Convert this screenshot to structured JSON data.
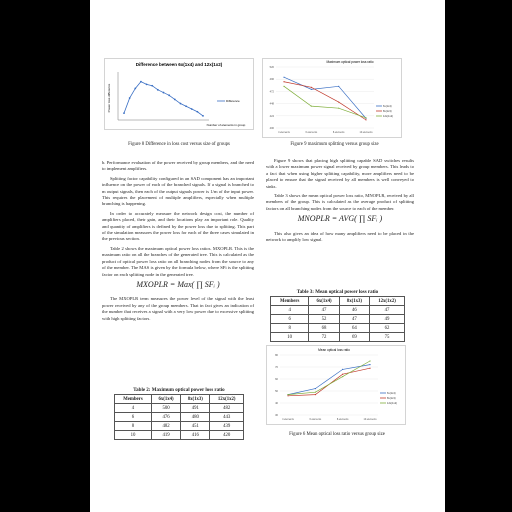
{
  "fig8": {
    "chart_data": {
      "type": "line",
      "title": "Difference between 6x(1x4) and 12x(1x2)",
      "x": [
        1,
        2,
        3,
        4,
        5,
        6,
        7,
        8,
        9,
        10,
        11,
        12,
        13,
        14,
        15
      ],
      "series": [
        {
          "name": "Difference",
          "values": [
            0.5,
            1.6,
            2.3,
            2.8,
            2.6,
            2.5,
            2.2,
            2.0,
            1.8,
            1.5,
            1.2,
            1.0,
            0.8,
            0.6,
            0.3
          ]
        }
      ],
      "ylim": [
        0,
        3.5
      ],
      "xlabel": "Number of elements in group",
      "ylabel": "Power loss difference",
      "color": "#3a6fc4"
    },
    "caption": "Figure 8 Difference in loss cost versus size of groups"
  },
  "fig9": {
    "chart_data": {
      "type": "line",
      "title": "Maximum optical power loss ratio",
      "categories": [
        "4 elements",
        "6 elements",
        "8 elements",
        "10 elements"
      ],
      "series": [
        {
          "name": "6x(1x4)",
          "values": [
            500,
            476,
            482,
            419
          ],
          "color": "#3a6fc4"
        },
        {
          "name": "8x(1x3)",
          "values": [
            491,
            480,
            451,
            416
          ],
          "color": "#c0392b"
        },
        {
          "name": "12x(1x2)",
          "values": [
            482,
            443,
            439,
            420
          ],
          "color": "#7fae3a"
        }
      ],
      "ylim": [
        400,
        520
      ]
    },
    "caption": "Figure 9 maximum splitting versus group size"
  },
  "fig10": {
    "chart_data": {
      "type": "line",
      "title": "Mean optical loss ratio",
      "categories": [
        "4 elements",
        "6 elements",
        "8 elements",
        "10 elements"
      ],
      "series": [
        {
          "name": "6x(1x4)",
          "values": [
            47,
            52,
            68,
            72
          ],
          "color": "#3a6fc4"
        },
        {
          "name": "8x(1x3)",
          "values": [
            46,
            47,
            64,
            69
          ],
          "color": "#c0392b"
        },
        {
          "name": "12x(1x2)",
          "values": [
            47,
            49,
            62,
            75
          ],
          "color": "#7fae3a"
        }
      ],
      "ylim": [
        30,
        80
      ]
    },
    "caption": "Figure 6 Mean optical loss ratio versus group size"
  },
  "left": {
    "heading": "b.   Performance evaluation of the power received by group members, and the need to implement amplifiers.",
    "p1": "Splitting factor capability configured in an SAD component has an important influence on the power of each of the branched signals. If a signal is branched to m output signals, then each of the output signals power is 1/m of the input power. This requires the placement of multiple amplifiers, especially when multiple branching is happening.",
    "p2": "In order to accurately measure the network design cost, the number of amplifiers placed, their gain, and their locations play an important role. Quality and quantity of amplifiers is defined by the power loss due to splitting. This part of the simulation measures the power loss for each of the three cases simulated in the previous section.",
    "p3": "Table 2 shows the maximum optical power loss ratios. MXOPLR. This is the maximum ratio on all the branches of the generated tree. This is calculated as the product of optical power loss ratio on all branching nodes from the source to any of the member. The MAS is given by the formula below, where SFi is the splitting factor on each splitting node in the generated tree.",
    "eq": "MXOPLR = Max( ∏ SFᵢ )",
    "p4": "The MXOPLR term measures the power level of the signal with the least power received by any of the group members. That in fact gives an indication of the number that receives a signal with a very low power due to excessive splitting with high splitting factors."
  },
  "table2": {
    "title": "Table 2: Maximum optical power loss ratio",
    "headers": [
      "Members",
      "6x(1x4)",
      "8x(1x3)",
      "12x(1x2)"
    ],
    "rows": [
      [
        "4",
        "500",
        "491",
        "482"
      ],
      [
        "6",
        "476",
        "480",
        "443"
      ],
      [
        "8",
        "482",
        "451",
        "439"
      ],
      [
        "10",
        "419",
        "416",
        "420"
      ]
    ]
  },
  "right": {
    "p1": "Figure 9 shows that placing high splitting capable SAD switches results with a lower maximum power signal received by group members. This leads to a fact that when using higher splitting capability, more amplifiers need to be placed to ensure that the signal received by all members is well conveyed to sinks.",
    "p2": "Table 3 shows the mean optical power loss ratio, MNOPLR, received by all members of the group. This is calculated as the average product of splitting factors on all branching nodes from the source to each of the member.",
    "eq": "MNOPLR = AVG( ∏ SFᵢ )",
    "p3": "This also gives an idea of how many amplifiers need to be placed in the network to amplify low signal."
  },
  "table3": {
    "title": "Table 3: Mean optical power loss ratio",
    "headers": [
      "Members",
      "6x(1x4)",
      "8x(1x3)",
      "12x(1x2)"
    ],
    "rows": [
      [
        "4",
        "47",
        "46",
        "47"
      ],
      [
        "6",
        "52",
        "47",
        "49"
      ],
      [
        "8",
        "68",
        "64",
        "62"
      ],
      [
        "10",
        "72",
        "69",
        "75"
      ]
    ]
  }
}
